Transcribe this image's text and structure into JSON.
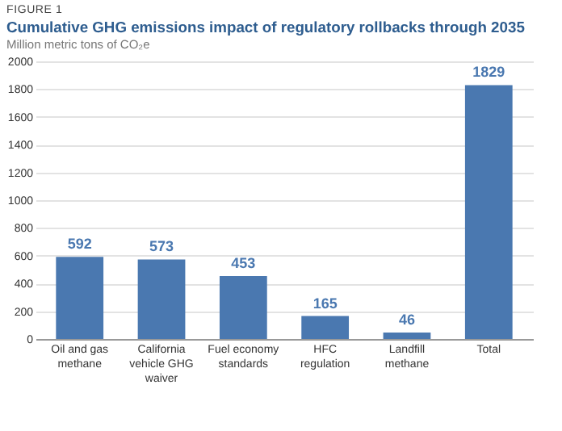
{
  "chart_data": {
    "type": "bar",
    "title": "Cumulative GHG emissions impact of regulatory rollbacks through 2035",
    "subtitle": "Million metric tons of CO₂e",
    "annotations": [
      "FIGURE 1"
    ],
    "categories": [
      "Oil and gas methane",
      "California vehicle GHG waiver",
      "Fuel economy standards",
      "HFC regulation",
      "Landfill methane",
      "Total"
    ],
    "values": [
      592,
      573,
      453,
      165,
      46,
      1829
    ],
    "color": "#4a78b0",
    "ylim": [
      0,
      2000
    ],
    "yticks": [
      0,
      200,
      400,
      600,
      800,
      1000,
      1200,
      1400,
      1600,
      1800,
      2000
    ],
    "grid": "y",
    "data_labels": true
  }
}
